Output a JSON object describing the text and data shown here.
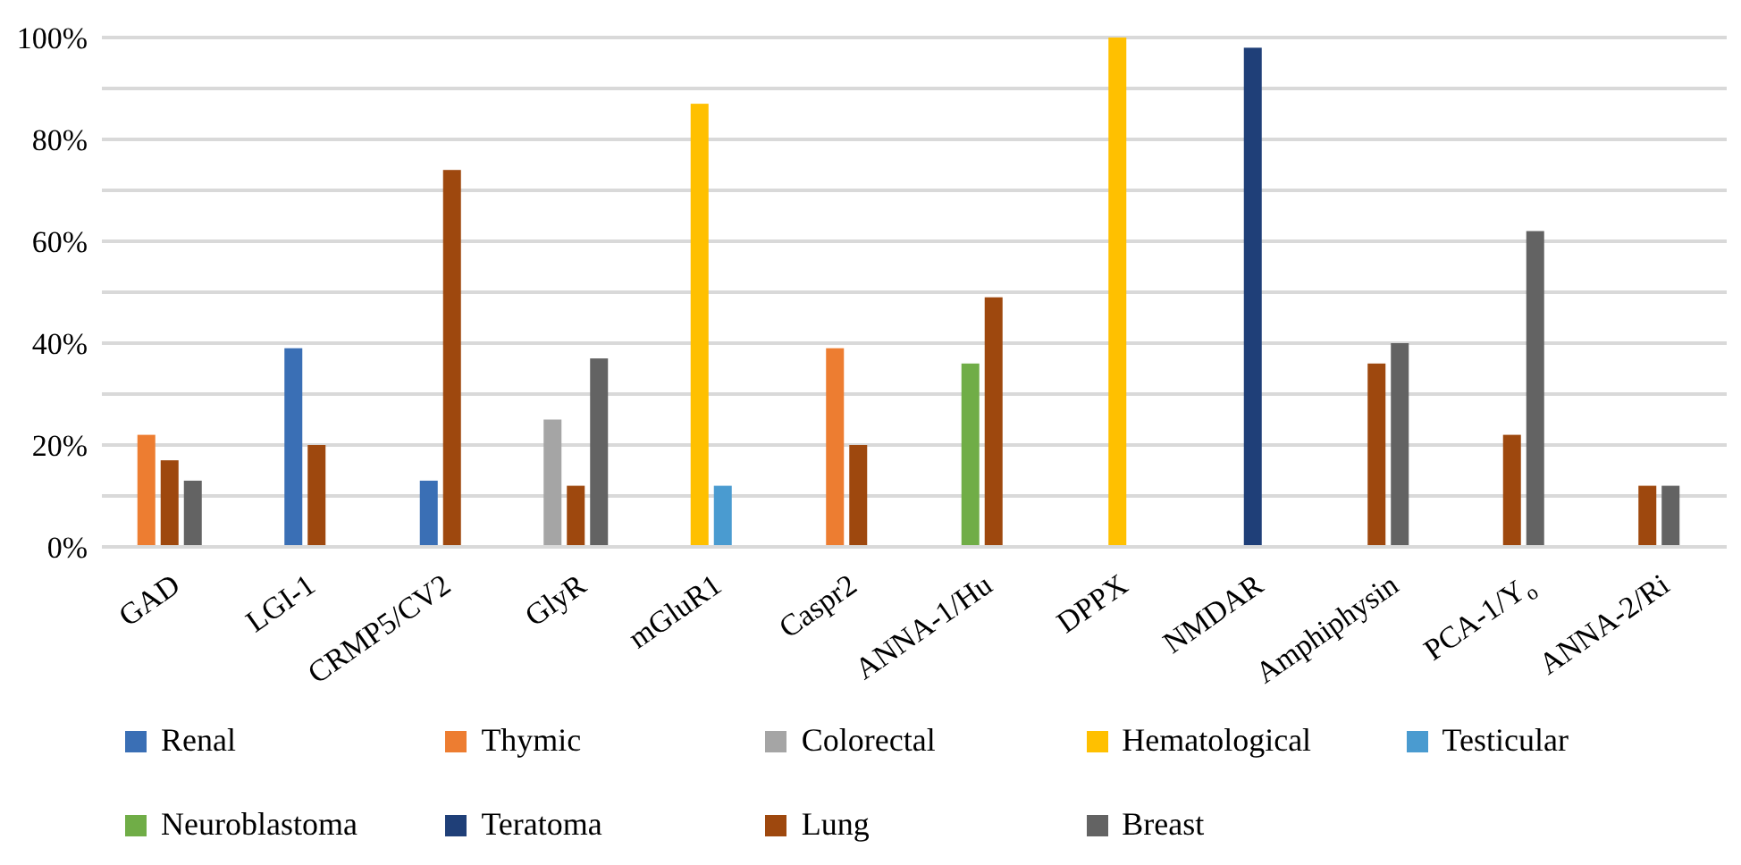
{
  "chart_data": {
    "type": "bar",
    "categories": [
      "GAD",
      "LGI-1",
      "CRMP5/CV2",
      "GlyR",
      "mGluR1",
      "Caspr2",
      "ANNA-1/Hu",
      "DPPX",
      "NMDAR",
      "Amphiphysin",
      "PCA-1/Y$_{o}$",
      "ANNA-2/Ri"
    ],
    "series": [
      {
        "name": "Renal",
        "color": "#3a6fb5",
        "values": [
          null,
          39,
          13,
          null,
          null,
          null,
          null,
          null,
          null,
          null,
          null,
          null
        ]
      },
      {
        "name": "Thymic",
        "color": "#ed7d31",
        "values": [
          22,
          null,
          null,
          null,
          null,
          39,
          null,
          null,
          null,
          null,
          null,
          null
        ]
      },
      {
        "name": "Colorectal",
        "color": "#a5a5a5",
        "values": [
          null,
          null,
          null,
          25,
          null,
          null,
          null,
          null,
          null,
          null,
          null,
          null
        ]
      },
      {
        "name": "Hematological",
        "color": "#ffc000",
        "values": [
          null,
          null,
          null,
          null,
          87,
          null,
          null,
          100,
          null,
          null,
          null,
          null
        ]
      },
      {
        "name": "Testicular",
        "color": "#4a9bd0",
        "values": [
          null,
          null,
          null,
          null,
          12,
          null,
          null,
          null,
          null,
          null,
          null,
          null
        ]
      },
      {
        "name": "Neuroblastoma",
        "color": "#70ad47",
        "values": [
          null,
          null,
          null,
          null,
          null,
          null,
          36,
          null,
          null,
          null,
          null,
          null
        ]
      },
      {
        "name": "Teratoma",
        "color": "#1f3f78",
        "values": [
          null,
          null,
          null,
          null,
          null,
          null,
          null,
          null,
          98,
          null,
          null,
          null
        ]
      },
      {
        "name": "Lung",
        "color": "#9e480e",
        "values": [
          17,
          20,
          74,
          12,
          null,
          20,
          49,
          null,
          null,
          36,
          22,
          12
        ]
      },
      {
        "name": "Breast",
        "color": "#636363",
        "values": [
          13,
          null,
          null,
          37,
          null,
          null,
          null,
          null,
          null,
          40,
          62,
          12
        ]
      }
    ],
    "ylim": [
      0,
      100
    ],
    "yticks": [
      {
        "value": 0,
        "label": "0%"
      },
      {
        "value": 10,
        "label": null
      },
      {
        "value": 20,
        "label": "20%"
      },
      {
        "value": 30,
        "label": null
      },
      {
        "value": 40,
        "label": "40%"
      },
      {
        "value": 50,
        "label": null
      },
      {
        "value": 60,
        "label": "60%"
      },
      {
        "value": 70,
        "label": null
      },
      {
        "value": 80,
        "label": "80%"
      },
      {
        "value": 90,
        "label": null
      },
      {
        "value": 100,
        "label": "100%"
      }
    ],
    "grid": "y",
    "legend": "bottom"
  }
}
